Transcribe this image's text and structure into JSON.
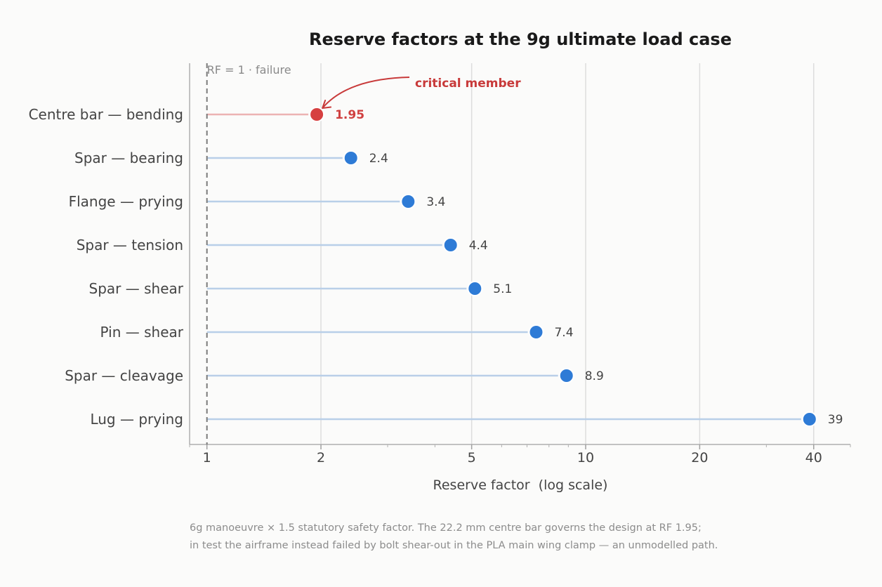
{
  "chart_data": {
    "type": "lollipop",
    "title": "Reserve factors at the 9g ultimate load case",
    "xlabel": "Reserve factor  (log scale)",
    "xscale": "log",
    "xlim": [
      0.9,
      50
    ],
    "xticks": [
      1,
      2,
      5,
      10,
      20,
      40
    ],
    "xtick_labels": [
      "1",
      "2",
      "5",
      "10",
      "20",
      "40"
    ],
    "grid": "vertical at major ticks",
    "categories": [
      "Centre bar — bending",
      "Spar — bearing",
      "Flange — prying",
      "Spar — tension",
      "Spar — shear",
      "Pin — shear",
      "Spar — cleavage",
      "Lug — prying"
    ],
    "values": [
      1.95,
      2.4,
      3.4,
      4.4,
      5.1,
      7.4,
      8.9,
      39
    ],
    "value_labels": [
      "1.95",
      "2.4",
      "3.4",
      "4.4",
      "5.1",
      "7.4",
      "8.9",
      "39"
    ],
    "highlight_index": 0,
    "reference_line": {
      "x": 1,
      "label": "RF = 1  ·  failure"
    },
    "annotation": {
      "text": "critical member",
      "target_index": 0
    },
    "colors": {
      "point": "#2e7bd6",
      "stem": "#b9cfe8",
      "critical_point": "#d64040",
      "critical_stem": "#ecb3b3",
      "annotation": "#c83a3a",
      "reference": "#7a7a7a",
      "grid": "#dddddd"
    }
  },
  "footnote": {
    "line1": "6g manoeuvre × 1.5 statutory safety factor. The 22.2 mm centre bar governs the design at RF 1.95;",
    "line2": "in test the airframe instead failed by bolt shear-out in the PLA main wing clamp — an unmodelled path."
  }
}
